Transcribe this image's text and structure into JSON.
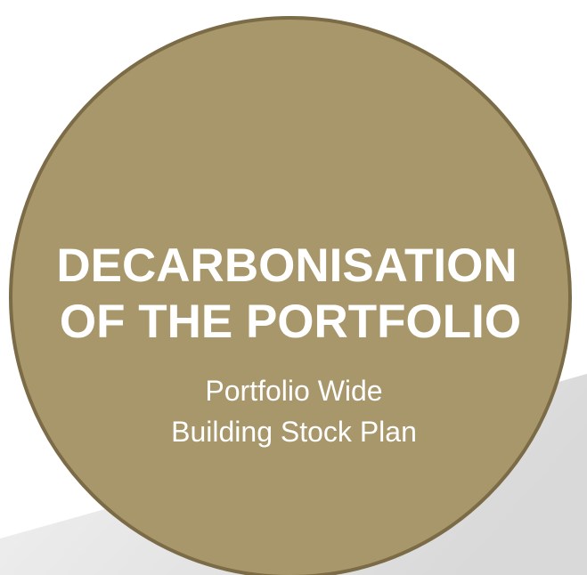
{
  "title": [
    "DECARBONISATION",
    "OF THE PORTFOLIO"
  ],
  "subtitle": [
    "Portfolio Wide",
    "Building Stock Plan"
  ]
}
